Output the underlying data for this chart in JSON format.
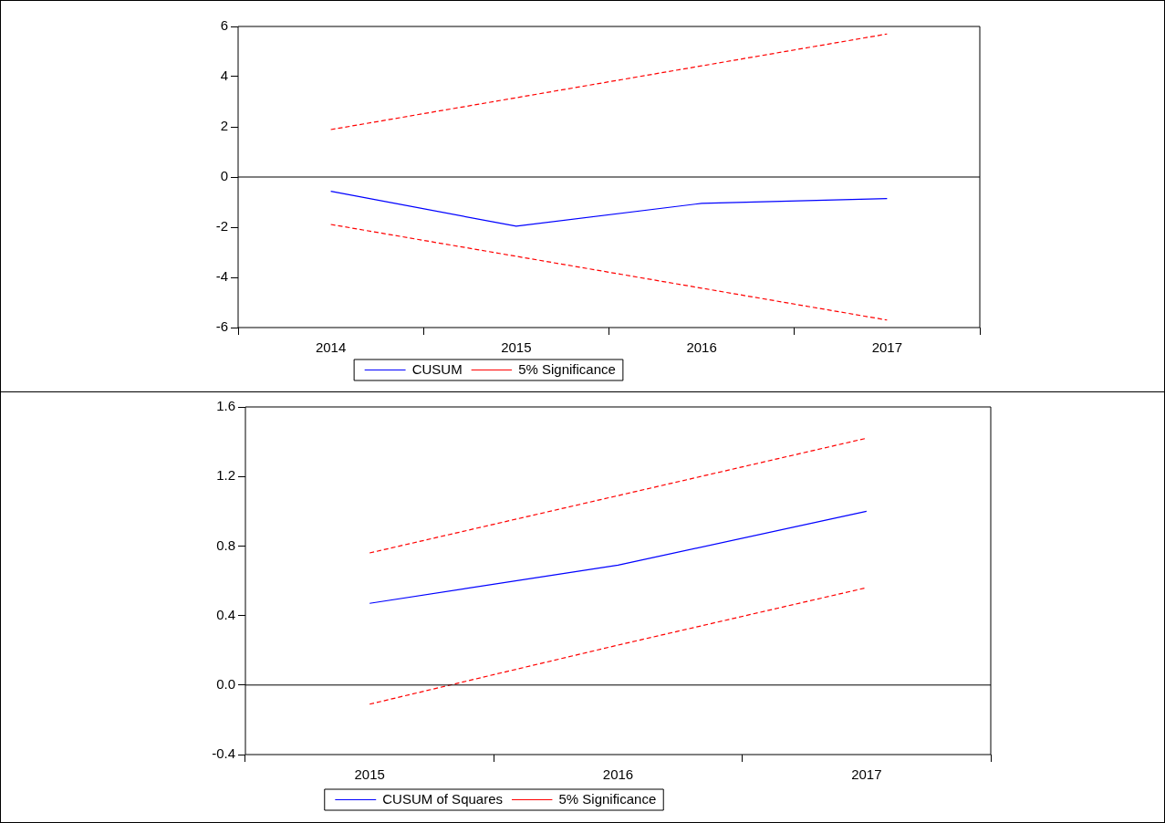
{
  "chart_data": [
    {
      "type": "line",
      "categories": [
        "2014",
        "2015",
        "2016",
        "2017"
      ],
      "series": [
        {
          "name": "CUSUM",
          "color": "#0000ff",
          "values": [
            -0.57,
            -1.96,
            -1.05,
            -0.86
          ],
          "line_style": "solid"
        },
        {
          "name": "5% Significance",
          "color": "#ff0000",
          "values": [
            1.89,
            3.16,
            4.43,
            5.7
          ],
          "line_style": "dashed"
        },
        {
          "color": "#ff0000",
          "values": [
            -1.89,
            -3.16,
            -4.43,
            -5.7
          ],
          "line_style": "dashed"
        }
      ],
      "ylim": [
        -6,
        6
      ],
      "yticks": [
        -6,
        -4,
        -2,
        0,
        2,
        4,
        6
      ],
      "grid": false,
      "legend": "bottom",
      "marker": "none",
      "ref_lines": [
        {
          "axis": "y",
          "value": 0,
          "color": "#000000"
        }
      ]
    },
    {
      "type": "line",
      "categories": [
        "2015",
        "2016",
        "2017"
      ],
      "series": [
        {
          "name": "CUSUM of Squares",
          "color": "#0000ff",
          "values": [
            0.47,
            0.69,
            1.0
          ],
          "line_style": "solid"
        },
        {
          "name": "5% Significance",
          "color": "#ff0000",
          "values": [
            0.76,
            1.09,
            1.42
          ],
          "line_style": "dashed"
        },
        {
          "color": "#ff0000",
          "values": [
            -0.11,
            0.23,
            0.56
          ],
          "line_style": "dashed"
        }
      ],
      "ylim": [
        -0.4,
        1.6
      ],
      "yticks": [
        {
          "value": -0.4,
          "label": "-0.4"
        },
        {
          "value": 0,
          "label": "0.0"
        },
        {
          "value": 0.4,
          "label": "0.4"
        },
        {
          "value": 0.8,
          "label": "0.8"
        },
        {
          "value": 1.2,
          "label": "1.2"
        },
        {
          "value": 1.6,
          "label": "1.6"
        }
      ],
      "grid": false,
      "legend": "bottom",
      "marker": "none",
      "ref_lines": [
        {
          "axis": "y",
          "value": 0,
          "color": "#000000"
        }
      ]
    }
  ]
}
